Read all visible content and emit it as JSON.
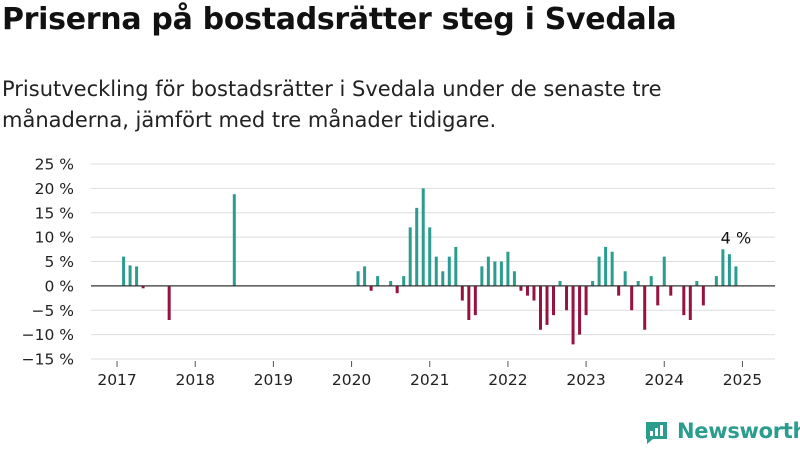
{
  "title": "Priserna på bostadsrätter steg i Svedala",
  "subtitle": "Prisutveckling för bostadsrätter i Svedala under de senaste tre månaderna, jämfört med tre månader tidigare.",
  "brand": {
    "name": "Newsworthy",
    "color": "#2a9d8f"
  },
  "colors": {
    "positive": "#2a9d8f",
    "negative": "#96133f",
    "grid": "#dddddd",
    "zero_line": "#333333"
  },
  "chart_data": {
    "type": "bar",
    "title": "",
    "xlabel": "",
    "ylabel": "",
    "ylim": [
      -15,
      25
    ],
    "yticks": [
      25,
      20,
      15,
      10,
      5,
      0,
      -5,
      -10,
      -15
    ],
    "ytick_labels": [
      "25 %",
      "20 %",
      "15 %",
      "10 %",
      "5 %",
      "0 %",
      "−5 %",
      "−10 %",
      "−15 %"
    ],
    "xticks": [
      "2017",
      "2018",
      "2019",
      "2020",
      "2021",
      "2022",
      "2023",
      "2024",
      "2025"
    ],
    "x_range": [
      "2016-09",
      "2025-06"
    ],
    "grid": "horizontal",
    "annotation": {
      "text": "4 %",
      "x": "2025-01"
    },
    "points": [
      {
        "x": "2017-02",
        "y": 6
      },
      {
        "x": "2017-03",
        "y": 4.2
      },
      {
        "x": "2017-04",
        "y": 4
      },
      {
        "x": "2017-05",
        "y": -0.5
      },
      {
        "x": "2017-09",
        "y": -7
      },
      {
        "x": "2018-07",
        "y": 18.8
      },
      {
        "x": "2020-02",
        "y": 3
      },
      {
        "x": "2020-03",
        "y": 4
      },
      {
        "x": "2020-04",
        "y": -1
      },
      {
        "x": "2020-05",
        "y": 2
      },
      {
        "x": "2020-07",
        "y": 1
      },
      {
        "x": "2020-08",
        "y": -1.5
      },
      {
        "x": "2020-09",
        "y": 2
      },
      {
        "x": "2020-10",
        "y": 12
      },
      {
        "x": "2020-11",
        "y": 16
      },
      {
        "x": "2020-12",
        "y": 20
      },
      {
        "x": "2021-01",
        "y": 12
      },
      {
        "x": "2021-02",
        "y": 6
      },
      {
        "x": "2021-03",
        "y": 3
      },
      {
        "x": "2021-04",
        "y": 6
      },
      {
        "x": "2021-05",
        "y": 8
      },
      {
        "x": "2021-06",
        "y": -3
      },
      {
        "x": "2021-07",
        "y": -7
      },
      {
        "x": "2021-08",
        "y": -6
      },
      {
        "x": "2021-09",
        "y": 4
      },
      {
        "x": "2021-10",
        "y": 6
      },
      {
        "x": "2021-11",
        "y": 5
      },
      {
        "x": "2021-12",
        "y": 5
      },
      {
        "x": "2022-01",
        "y": 7
      },
      {
        "x": "2022-02",
        "y": 3
      },
      {
        "x": "2022-03",
        "y": -1
      },
      {
        "x": "2022-04",
        "y": -2
      },
      {
        "x": "2022-05",
        "y": -3
      },
      {
        "x": "2022-06",
        "y": -9
      },
      {
        "x": "2022-07",
        "y": -8
      },
      {
        "x": "2022-08",
        "y": -6
      },
      {
        "x": "2022-09",
        "y": 1
      },
      {
        "x": "2022-10",
        "y": -5
      },
      {
        "x": "2022-11",
        "y": -12
      },
      {
        "x": "2022-12",
        "y": -10
      },
      {
        "x": "2023-01",
        "y": -6
      },
      {
        "x": "2023-02",
        "y": 1
      },
      {
        "x": "2023-03",
        "y": 6
      },
      {
        "x": "2023-04",
        "y": 8
      },
      {
        "x": "2023-05",
        "y": 7
      },
      {
        "x": "2023-06",
        "y": -2
      },
      {
        "x": "2023-07",
        "y": 3
      },
      {
        "x": "2023-08",
        "y": -5
      },
      {
        "x": "2023-09",
        "y": 1
      },
      {
        "x": "2023-10",
        "y": -9
      },
      {
        "x": "2023-11",
        "y": 2
      },
      {
        "x": "2023-12",
        "y": -4
      },
      {
        "x": "2024-01",
        "y": 6
      },
      {
        "x": "2024-02",
        "y": -2
      },
      {
        "x": "2024-04",
        "y": -6
      },
      {
        "x": "2024-05",
        "y": -7
      },
      {
        "x": "2024-06",
        "y": 1
      },
      {
        "x": "2024-07",
        "y": -4
      },
      {
        "x": "2024-09",
        "y": 2
      },
      {
        "x": "2024-10",
        "y": 7.5
      },
      {
        "x": "2024-11",
        "y": 6.5
      },
      {
        "x": "2024-12",
        "y": 4
      }
    ]
  }
}
